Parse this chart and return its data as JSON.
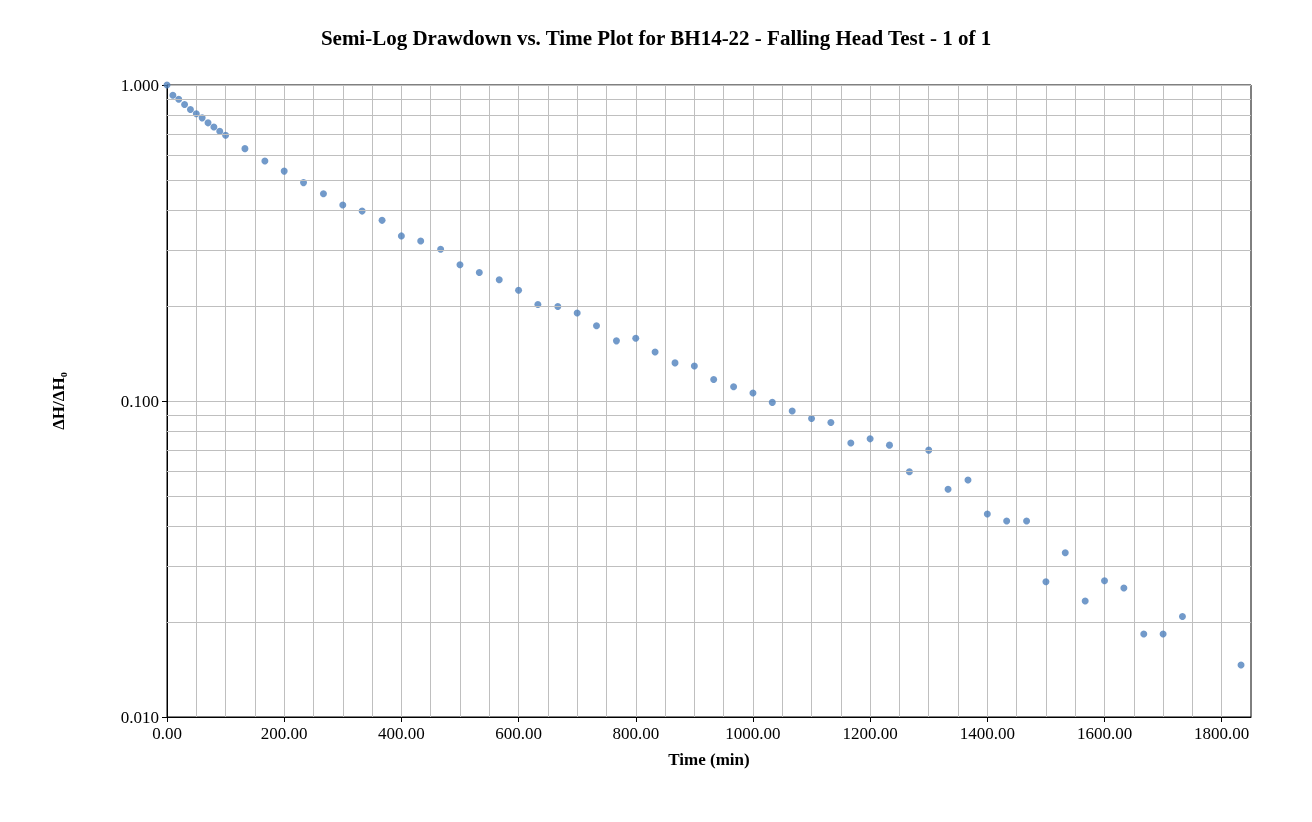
{
  "chart_data": {
    "type": "scatter",
    "title": "Semi-Log Drawdown vs. Time Plot for BH14-22 - Falling Head Test - 1 of 1",
    "xlabel": "Time (min)",
    "ylabel": "ΔH/ΔH₀",
    "log": "y",
    "grid": true,
    "marker": "circle",
    "xlim": [
      0,
      1850
    ],
    "xticks": [
      {
        "value": 0,
        "label": "0.00"
      },
      {
        "value": 200,
        "label": "200.00"
      },
      {
        "value": 400,
        "label": "400.00"
      },
      {
        "value": 600,
        "label": "600.00"
      },
      {
        "value": 800,
        "label": "800.00"
      },
      {
        "value": 1000,
        "label": "1000.00"
      },
      {
        "value": 1200,
        "label": "1200.00"
      },
      {
        "value": 1400,
        "label": "1400.00"
      },
      {
        "value": 1600,
        "label": "1600.00"
      },
      {
        "value": 1800,
        "label": "1800.00"
      }
    ],
    "ylim": [
      0.01,
      1
    ],
    "yticks": [
      {
        "value": 0.01,
        "label": "0.010"
      },
      {
        "value": 0.1,
        "label": "0.100"
      },
      {
        "value": 1,
        "label": "1.000"
      }
    ],
    "x": [
      0,
      10,
      20,
      30,
      40,
      50,
      60,
      70,
      80,
      90,
      100,
      133,
      167,
      200,
      233,
      267,
      300,
      333,
      367,
      400,
      433,
      467,
      500,
      533,
      567,
      600,
      633,
      667,
      700,
      733,
      767,
      800,
      833,
      867,
      900,
      933,
      967,
      1000,
      1033,
      1067,
      1100,
      1133,
      1167,
      1200,
      1233,
      1267,
      1300,
      1333,
      1367,
      1400,
      1433,
      1467,
      1500,
      1533,
      1567,
      1600,
      1633,
      1667,
      1700,
      1733,
      1833
    ],
    "series": [
      {
        "color": "#4f81bd",
        "values": [
          1.0,
          0.928,
          0.901,
          0.868,
          0.836,
          0.811,
          0.787,
          0.759,
          0.736,
          0.714,
          0.693,
          0.629,
          0.575,
          0.534,
          0.491,
          0.453,
          0.417,
          0.399,
          0.373,
          0.333,
          0.321,
          0.302,
          0.27,
          0.255,
          0.242,
          0.224,
          0.202,
          0.199,
          0.19,
          0.173,
          0.155,
          0.158,
          0.143,
          0.132,
          0.129,
          0.117,
          0.111,
          0.106,
          0.099,
          0.093,
          0.088,
          0.0855,
          0.0736,
          0.0759,
          0.0725,
          0.0597,
          0.0699,
          0.0526,
          0.0562,
          0.0439,
          0.0417,
          0.0417,
          0.0268,
          0.0331,
          0.0233,
          0.027,
          0.0256,
          0.0183,
          0.0183,
          0.0208,
          0.0146
        ]
      }
    ]
  }
}
